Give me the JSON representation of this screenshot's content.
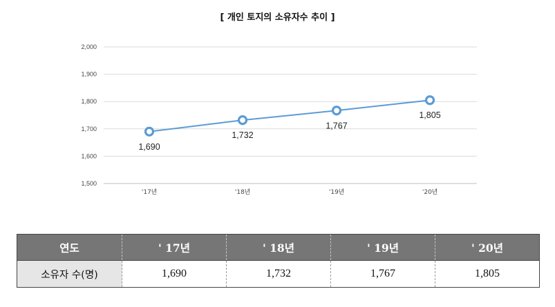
{
  "title": "[ 개인 토지의 소유자수 추이 ]",
  "chart_data": {
    "type": "line",
    "title": "[ 개인 토지의 소유자수 추이 ]",
    "xlabel": "",
    "ylabel": "",
    "categories": [
      "'17년",
      "'18년",
      "'19년",
      "'20년"
    ],
    "series": [
      {
        "values": [
          1690,
          1732,
          1767,
          1805
        ],
        "color": "#5b9bd5"
      }
    ],
    "data_labels": [
      "1,690",
      "1,732",
      "1,767",
      "1,805"
    ],
    "y_ticks": [
      1500,
      1600,
      1700,
      1800,
      1900,
      2000
    ],
    "y_tick_labels": [
      "1,500",
      "1,600",
      "1,700",
      "1,800",
      "1,900",
      "2,000"
    ],
    "ylim": [
      1500,
      2000
    ],
    "grid": true,
    "legend": "none"
  },
  "table": {
    "header": [
      "연도",
      "' 17년",
      "' 18년",
      "' 19년",
      "' 20년"
    ],
    "row_label": "소유자 수(명)",
    "row_values": [
      "1,690",
      "1,732",
      "1,767",
      "1,805"
    ]
  },
  "colors": {
    "series": "#5b9bd5",
    "grid": "#d9d9d9",
    "header_bg": "#767676",
    "row_label_bg": "#e6e6e6"
  }
}
